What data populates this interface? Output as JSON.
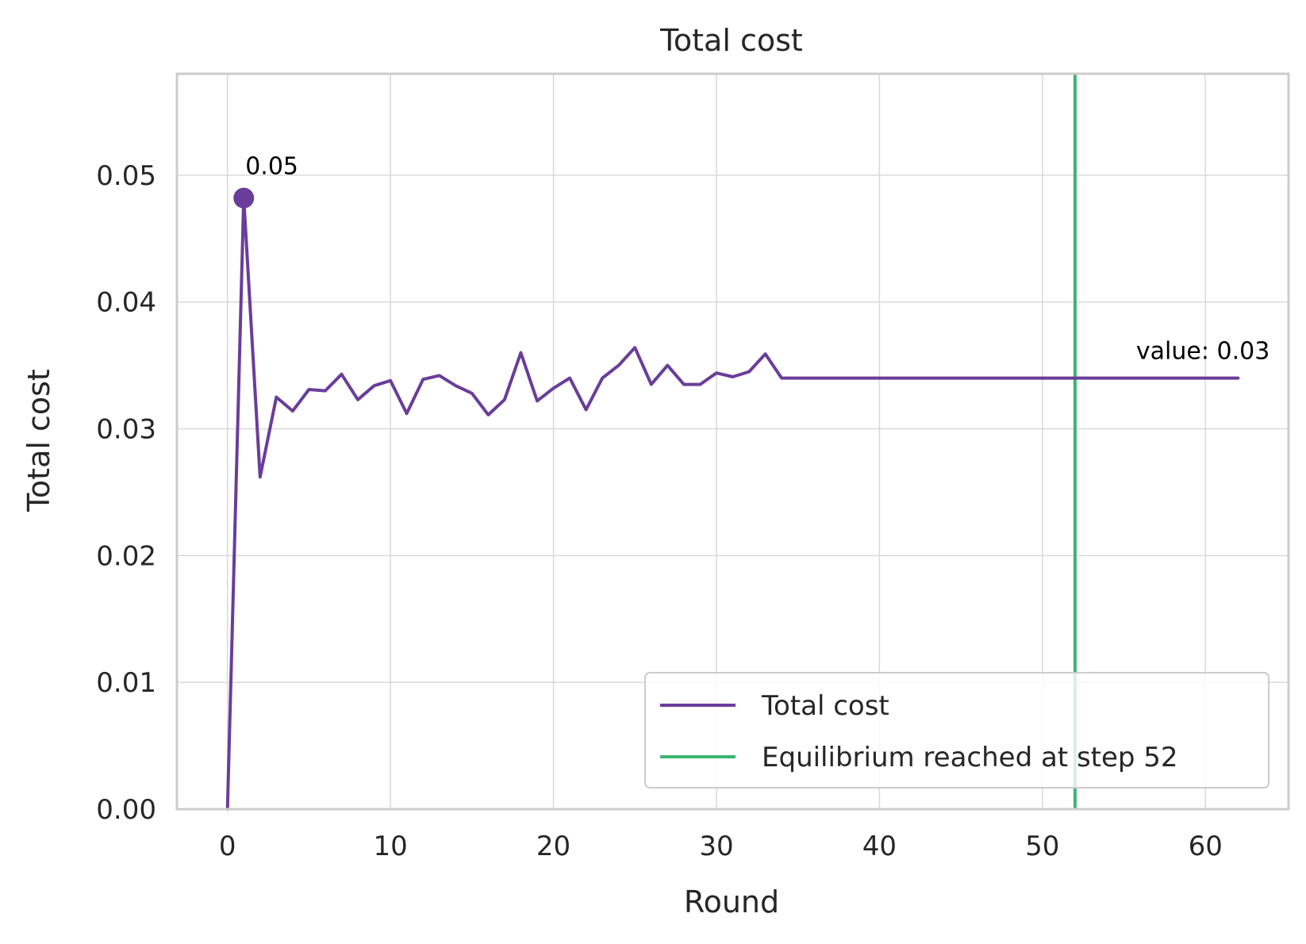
{
  "chart_data": {
    "type": "line",
    "title": "Total cost",
    "xlabel": "Round",
    "ylabel": "Total cost",
    "xlim": [
      -3.1,
      65.1
    ],
    "ylim": [
      0,
      0.058
    ],
    "xticks": [
      0,
      10,
      20,
      30,
      40,
      50,
      60
    ],
    "xtick_labels": [
      "0",
      "10",
      "20",
      "30",
      "40",
      "50",
      "60"
    ],
    "yticks": [
      0,
      0.01,
      0.02,
      0.03,
      0.04,
      0.05
    ],
    "ytick_labels": [
      "0.00",
      "0.01",
      "0.02",
      "0.03",
      "0.04",
      "0.05"
    ],
    "grid": true,
    "series": [
      {
        "name": "Total cost",
        "color": "#6a3d9a",
        "x": [
          0,
          1,
          2,
          3,
          4,
          5,
          6,
          7,
          8,
          9,
          10,
          11,
          12,
          13,
          14,
          15,
          16,
          17,
          18,
          19,
          20,
          21,
          22,
          23,
          24,
          25,
          26,
          27,
          28,
          29,
          30,
          31,
          32,
          33,
          34,
          35,
          36,
          37,
          38,
          39,
          40,
          41,
          42,
          43,
          44,
          45,
          46,
          47,
          48,
          49,
          50,
          51,
          52,
          53,
          54,
          55,
          56,
          57,
          58,
          59,
          60,
          61,
          62
        ],
        "values": [
          0.0,
          0.0482,
          0.0262,
          0.0325,
          0.0314,
          0.0331,
          0.033,
          0.0343,
          0.0323,
          0.0334,
          0.0338,
          0.0312,
          0.0339,
          0.0342,
          0.0334,
          0.0328,
          0.0311,
          0.0323,
          0.036,
          0.0322,
          0.0332,
          0.034,
          0.0315,
          0.034,
          0.035,
          0.0364,
          0.0335,
          0.035,
          0.0335,
          0.0335,
          0.0344,
          0.0341,
          0.0345,
          0.0359,
          0.034,
          0.034,
          0.034,
          0.034,
          0.034,
          0.034,
          0.034,
          0.034,
          0.034,
          0.034,
          0.034,
          0.034,
          0.034,
          0.034,
          0.034,
          0.034,
          0.034,
          0.034,
          0.034,
          0.034,
          0.034,
          0.034,
          0.034,
          0.034,
          0.034,
          0.034,
          0.034,
          0.034,
          0.034
        ]
      }
    ],
    "vline": {
      "x": 52,
      "name": "Equilibrium reached at step 52",
      "color": "#3cb371"
    },
    "max_marker": {
      "x": 1,
      "y": 0.0482,
      "label": "0.05"
    },
    "end_annotation": {
      "x": 62,
      "y": 0.034,
      "label": "value: 0.03"
    },
    "legend": {
      "position": "lower-right",
      "entries": [
        {
          "label": "Total cost",
          "color": "#6a3d9a"
        },
        {
          "label": "Equilibrium reached at step 52",
          "color": "#3cb371"
        }
      ]
    }
  }
}
